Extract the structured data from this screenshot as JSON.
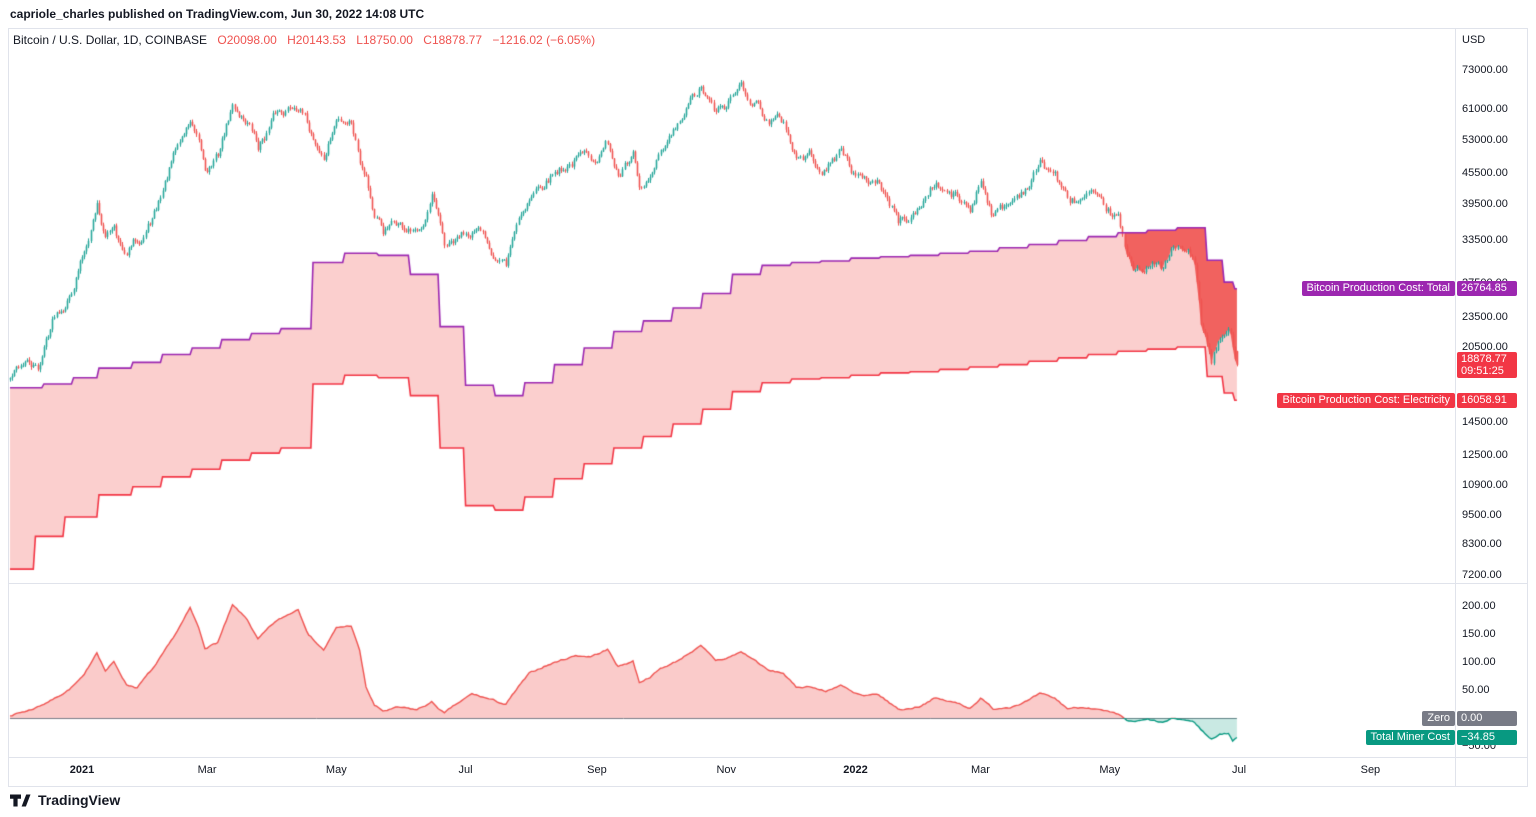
{
  "attribution": "capriole_charles published on TradingView.com, Jun 30, 2022 14:08 UTC",
  "legend": {
    "symbol": "Bitcoin / U.S. Dollar, 1D, COINBASE",
    "open": "O20098.00",
    "high": "H20143.53",
    "low": "L18750.00",
    "close": "C18878.77",
    "change": "−1216.02 (−6.05%)"
  },
  "price_scale": {
    "currency": "USD",
    "ticks": [
      {
        "label": "73000.00",
        "value": 73000
      },
      {
        "label": "61000.00",
        "value": 61000
      },
      {
        "label": "53000.00",
        "value": 53000
      },
      {
        "label": "45500.00",
        "value": 45500
      },
      {
        "label": "39500.00",
        "value": 39500
      },
      {
        "label": "33500.00",
        "value": 33500
      },
      {
        "label": "27500.00",
        "value": 27500
      },
      {
        "label": "23500.00",
        "value": 23500
      },
      {
        "label": "20500.00",
        "value": 20500
      },
      {
        "label": "14500.00",
        "value": 14500
      },
      {
        "label": "12500.00",
        "value": 12500
      },
      {
        "label": "10900.00",
        "value": 10900
      },
      {
        "label": "9500.00",
        "value": 9500
      },
      {
        "label": "8300.00",
        "value": 8300
      },
      {
        "label": "7200.00",
        "value": 7200
      }
    ]
  },
  "indicator_scale": {
    "ticks": [
      {
        "label": "200.00",
        "value": 200
      },
      {
        "label": "150.00",
        "value": 150
      },
      {
        "label": "100.00",
        "value": 100
      },
      {
        "label": "50.00",
        "value": 50
      },
      {
        "label": "−50.00",
        "value": -50
      }
    ]
  },
  "time_scale": {
    "ticks": [
      {
        "label": "2021",
        "date": "2021-01-01",
        "major": true
      },
      {
        "label": "Mar",
        "date": "2021-03-01",
        "major": false
      },
      {
        "label": "May",
        "date": "2021-05-01",
        "major": false
      },
      {
        "label": "Jul",
        "date": "2021-07-01",
        "major": false
      },
      {
        "label": "Sep",
        "date": "2021-09-01",
        "major": false
      },
      {
        "label": "Nov",
        "date": "2021-11-01",
        "major": false
      },
      {
        "label": "2022",
        "date": "2022-01-01",
        "major": true
      },
      {
        "label": "Mar",
        "date": "2022-03-01",
        "major": false
      },
      {
        "label": "May",
        "date": "2022-05-01",
        "major": false
      },
      {
        "label": "Jul",
        "date": "2022-07-01",
        "major": false
      },
      {
        "label": "Sep",
        "date": "2022-09-01",
        "major": false
      }
    ]
  },
  "tags": {
    "production_total": {
      "label": "Bitcoin Production Cost: Total",
      "value": "26764.85",
      "price": 26764.85,
      "color": "#9c27b0"
    },
    "production_electricity": {
      "label": "Bitcoin Production Cost: Electricity",
      "value": "16058.91",
      "price": 16058.91,
      "color": "#f23645"
    },
    "last_price": {
      "value": "18878.77",
      "countdown": "09:51:25",
      "price": 18878.77,
      "color": "#f23645"
    },
    "zero": {
      "label": "Zero",
      "value": "0.00",
      "v": 0,
      "color": "#787b86"
    },
    "miner_cost": {
      "label": "Total Miner Cost",
      "value": "−34.85",
      "v": -34.85,
      "color": "#089981"
    }
  },
  "footer": {
    "brand": "TradingView"
  },
  "chart_data": {
    "type": "candlestick",
    "title": "Bitcoin / U.S. Dollar",
    "interval": "1D",
    "exchange": "COINBASE",
    "price_axis": {
      "scale": "log",
      "visible_range": [
        7200,
        73000
      ],
      "currency": "USD"
    },
    "indicator_axis": {
      "scale": "linear",
      "visible_range": [
        -50,
        215
      ]
    },
    "x_range": {
      "start": "2020-11-28",
      "end": "2022-10-08",
      "last_bar": "2022-06-30"
    },
    "ohlc_last": {
      "open": 20098.0,
      "high": 20143.53,
      "low": 18750.0,
      "close": 18878.77,
      "change": -1216.02,
      "change_pct": -6.05
    },
    "close_keyframes": [
      [
        "2020-11-28",
        17700
      ],
      [
        "2020-12-05",
        19150
      ],
      [
        "2020-12-11",
        18250
      ],
      [
        "2020-12-19",
        23900
      ],
      [
        "2020-12-26",
        26500
      ],
      [
        "2021-01-02",
        32200
      ],
      [
        "2021-01-08",
        40600
      ],
      [
        "2021-01-12",
        34000
      ],
      [
        "2021-01-16",
        36800
      ],
      [
        "2021-01-21",
        31000
      ],
      [
        "2021-01-29",
        34300
      ],
      [
        "2021-02-05",
        38300
      ],
      [
        "2021-02-12",
        47200
      ],
      [
        "2021-02-21",
        57500
      ],
      [
        "2021-02-28",
        45100
      ],
      [
        "2021-03-06",
        48900
      ],
      [
        "2021-03-13",
        61200
      ],
      [
        "2021-03-20",
        58100
      ],
      [
        "2021-03-25",
        51300
      ],
      [
        "2021-04-02",
        59000
      ],
      [
        "2021-04-13",
        63500
      ],
      [
        "2021-04-18",
        56200
      ],
      [
        "2021-04-25",
        49000
      ],
      [
        "2021-05-01",
        57800
      ],
      [
        "2021-05-08",
        58800
      ],
      [
        "2021-05-12",
        49500
      ],
      [
        "2021-05-15",
        46700
      ],
      [
        "2021-05-19",
        38000
      ],
      [
        "2021-05-23",
        34700
      ],
      [
        "2021-05-30",
        35600
      ],
      [
        "2021-06-08",
        33400
      ],
      [
        "2021-06-15",
        40100
      ],
      [
        "2021-06-21",
        31600
      ],
      [
        "2021-06-26",
        32200
      ],
      [
        "2021-07-04",
        35300
      ],
      [
        "2021-07-10",
        33500
      ],
      [
        "2021-07-20",
        29800
      ],
      [
        "2021-07-26",
        37200
      ],
      [
        "2021-07-31",
        41500
      ],
      [
        "2021-08-07",
        44600
      ],
      [
        "2021-08-14",
        47100
      ],
      [
        "2021-08-22",
        48900
      ],
      [
        "2021-08-29",
        48800
      ],
      [
        "2021-09-06",
        52700
      ],
      [
        "2021-09-11",
        45200
      ],
      [
        "2021-09-18",
        48300
      ],
      [
        "2021-09-21",
        40700
      ],
      [
        "2021-09-26",
        43200
      ],
      [
        "2021-10-01",
        48200
      ],
      [
        "2021-10-09",
        54700
      ],
      [
        "2021-10-15",
        61600
      ],
      [
        "2021-10-20",
        66000
      ],
      [
        "2021-10-27",
        58500
      ],
      [
        "2021-11-01",
        61000
      ],
      [
        "2021-11-08",
        67500
      ],
      [
        "2021-11-15",
        63600
      ],
      [
        "2021-11-21",
        58700
      ],
      [
        "2021-11-28",
        57300
      ],
      [
        "2021-12-04",
        49200
      ],
      [
        "2021-12-11",
        49400
      ],
      [
        "2021-12-18",
        46700
      ],
      [
        "2021-12-25",
        50800
      ],
      [
        "2021-12-31",
        46200
      ],
      [
        "2022-01-05",
        43400
      ],
      [
        "2022-01-12",
        43900
      ],
      [
        "2022-01-21",
        36400
      ],
      [
        "2022-01-24",
        36700
      ],
      [
        "2022-01-31",
        38500
      ],
      [
        "2022-02-07",
        44000
      ],
      [
        "2022-02-12",
        42200
      ],
      [
        "2022-02-19",
        40100
      ],
      [
        "2022-02-24",
        38300
      ],
      [
        "2022-03-01",
        44400
      ],
      [
        "2022-03-07",
        38000
      ],
      [
        "2022-03-15",
        39600
      ],
      [
        "2022-03-24",
        44000
      ],
      [
        "2022-03-29",
        47400
      ],
      [
        "2022-04-05",
        45500
      ],
      [
        "2022-04-11",
        39500
      ],
      [
        "2022-04-21",
        40500
      ],
      [
        "2022-04-30",
        37700
      ],
      [
        "2022-05-05",
        36500
      ],
      [
        "2022-05-09",
        30100
      ],
      [
        "2022-05-12",
        29000
      ],
      [
        "2022-05-19",
        30300
      ],
      [
        "2022-05-26",
        29200
      ],
      [
        "2022-05-31",
        31800
      ],
      [
        "2022-06-06",
        31400
      ],
      [
        "2022-06-10",
        30100
      ],
      [
        "2022-06-13",
        22500
      ],
      [
        "2022-06-18",
        19000
      ],
      [
        "2022-06-21",
        20700
      ],
      [
        "2022-06-26",
        21500
      ],
      [
        "2022-06-30",
        18878.77
      ]
    ],
    "production_cost_total_steps": [
      [
        "2020-11-28",
        17000
      ],
      [
        "2020-12-14",
        17300
      ],
      [
        "2020-12-28",
        17800
      ],
      [
        "2021-01-09",
        18600
      ],
      [
        "2021-01-25",
        19100
      ],
      [
        "2021-02-08",
        19800
      ],
      [
        "2021-02-22",
        20400
      ],
      [
        "2021-03-08",
        21200
      ],
      [
        "2021-03-22",
        21800
      ],
      [
        "2021-04-05",
        22300
      ],
      [
        "2021-04-20",
        30200
      ],
      [
        "2021-05-05",
        31500
      ],
      [
        "2021-05-21",
        31200
      ],
      [
        "2021-06-05",
        28600
      ],
      [
        "2021-06-19",
        22500
      ],
      [
        "2021-07-01",
        17200
      ],
      [
        "2021-07-15",
        16400
      ],
      [
        "2021-07-29",
        17400
      ],
      [
        "2021-08-12",
        18900
      ],
      [
        "2021-08-26",
        20400
      ],
      [
        "2021-09-09",
        22000
      ],
      [
        "2021-09-23",
        23100
      ],
      [
        "2021-10-07",
        24500
      ],
      [
        "2021-10-21",
        26200
      ],
      [
        "2021-11-04",
        28600
      ],
      [
        "2021-11-18",
        29800
      ],
      [
        "2021-12-02",
        30200
      ],
      [
        "2021-12-16",
        30400
      ],
      [
        "2021-12-30",
        30800
      ],
      [
        "2022-01-13",
        31000
      ],
      [
        "2022-01-27",
        31200
      ],
      [
        "2022-02-10",
        31500
      ],
      [
        "2022-02-24",
        31800
      ],
      [
        "2022-03-10",
        32300
      ],
      [
        "2022-03-24",
        32800
      ],
      [
        "2022-04-07",
        33400
      ],
      [
        "2022-04-21",
        34000
      ],
      [
        "2022-05-05",
        34600
      ],
      [
        "2022-05-19",
        35000
      ],
      [
        "2022-06-02",
        35400
      ],
      [
        "2022-06-16",
        30500
      ],
      [
        "2022-06-24",
        27600
      ],
      [
        "2022-06-29",
        26764.85
      ]
    ],
    "production_cost_electricity_steps": [
      [
        "2020-11-28",
        7400
      ],
      [
        "2020-12-10",
        8600
      ],
      [
        "2020-12-24",
        9400
      ],
      [
        "2021-01-09",
        10400
      ],
      [
        "2021-01-25",
        10800
      ],
      [
        "2021-02-08",
        11300
      ],
      [
        "2021-02-22",
        11700
      ],
      [
        "2021-03-08",
        12200
      ],
      [
        "2021-03-22",
        12600
      ],
      [
        "2021-04-05",
        12900
      ],
      [
        "2021-04-20",
        17300
      ],
      [
        "2021-05-05",
        18000
      ],
      [
        "2021-05-21",
        17800
      ],
      [
        "2021-06-05",
        16400
      ],
      [
        "2021-06-19",
        12900
      ],
      [
        "2021-07-01",
        9900
      ],
      [
        "2021-07-15",
        9700
      ],
      [
        "2021-07-29",
        10300
      ],
      [
        "2021-08-12",
        11200
      ],
      [
        "2021-08-26",
        12000
      ],
      [
        "2021-09-09",
        12900
      ],
      [
        "2021-09-23",
        13600
      ],
      [
        "2021-10-07",
        14400
      ],
      [
        "2021-10-21",
        15400
      ],
      [
        "2021-11-04",
        16700
      ],
      [
        "2021-11-18",
        17400
      ],
      [
        "2021-12-02",
        17700
      ],
      [
        "2021-12-16",
        17800
      ],
      [
        "2021-12-30",
        18000
      ],
      [
        "2022-01-13",
        18200
      ],
      [
        "2022-01-27",
        18300
      ],
      [
        "2022-02-10",
        18500
      ],
      [
        "2022-02-24",
        18700
      ],
      [
        "2022-03-10",
        18900
      ],
      [
        "2022-03-24",
        19200
      ],
      [
        "2022-04-07",
        19500
      ],
      [
        "2022-04-21",
        19800
      ],
      [
        "2022-05-05",
        20100
      ],
      [
        "2022-05-19",
        20300
      ],
      [
        "2022-06-02",
        20500
      ],
      [
        "2022-06-16",
        17900
      ],
      [
        "2022-06-24",
        16600
      ],
      [
        "2022-06-29",
        16058.91
      ]
    ],
    "total_miner_cost_pct": [
      [
        "2020-11-28",
        5
      ],
      [
        "2020-12-08",
        15
      ],
      [
        "2020-12-19",
        35
      ],
      [
        "2020-12-26",
        52
      ],
      [
        "2021-01-02",
        75
      ],
      [
        "2021-01-08",
        118
      ],
      [
        "2021-01-12",
        85
      ],
      [
        "2021-01-16",
        100
      ],
      [
        "2021-01-22",
        60
      ],
      [
        "2021-01-27",
        55
      ],
      [
        "2021-02-05",
        95
      ],
      [
        "2021-02-12",
        135
      ],
      [
        "2021-02-21",
        195
      ],
      [
        "2021-02-25",
        160
      ],
      [
        "2021-02-28",
        125
      ],
      [
        "2021-03-06",
        135
      ],
      [
        "2021-03-13",
        200
      ],
      [
        "2021-03-20",
        175
      ],
      [
        "2021-03-25",
        140
      ],
      [
        "2021-04-02",
        170
      ],
      [
        "2021-04-13",
        195
      ],
      [
        "2021-04-18",
        150
      ],
      [
        "2021-04-25",
        122
      ],
      [
        "2021-05-01",
        160
      ],
      [
        "2021-05-08",
        165
      ],
      [
        "2021-05-12",
        120
      ],
      [
        "2021-05-15",
        55
      ],
      [
        "2021-05-19",
        22
      ],
      [
        "2021-05-23",
        12
      ],
      [
        "2021-05-30",
        18
      ],
      [
        "2021-06-08",
        14
      ],
      [
        "2021-06-15",
        28
      ],
      [
        "2021-06-21",
        8
      ],
      [
        "2021-06-26",
        22
      ],
      [
        "2021-07-04",
        42
      ],
      [
        "2021-07-10",
        36
      ],
      [
        "2021-07-20",
        24
      ],
      [
        "2021-07-26",
        55
      ],
      [
        "2021-07-31",
        78
      ],
      [
        "2021-08-07",
        92
      ],
      [
        "2021-08-14",
        102
      ],
      [
        "2021-08-22",
        112
      ],
      [
        "2021-08-29",
        110
      ],
      [
        "2021-09-06",
        122
      ],
      [
        "2021-09-11",
        92
      ],
      [
        "2021-09-18",
        102
      ],
      [
        "2021-09-21",
        64
      ],
      [
        "2021-09-26",
        74
      ],
      [
        "2021-10-01",
        88
      ],
      [
        "2021-10-09",
        102
      ],
      [
        "2021-10-15",
        118
      ],
      [
        "2021-10-20",
        128
      ],
      [
        "2021-10-27",
        102
      ],
      [
        "2021-11-01",
        106
      ],
      [
        "2021-11-08",
        118
      ],
      [
        "2021-11-15",
        102
      ],
      [
        "2021-11-21",
        84
      ],
      [
        "2021-11-28",
        80
      ],
      [
        "2021-12-04",
        54
      ],
      [
        "2021-12-11",
        57
      ],
      [
        "2021-12-18",
        47
      ],
      [
        "2021-12-25",
        60
      ],
      [
        "2021-12-31",
        44
      ],
      [
        "2022-01-05",
        38
      ],
      [
        "2022-01-12",
        40
      ],
      [
        "2022-01-21",
        16
      ],
      [
        "2022-01-24",
        15
      ],
      [
        "2022-01-31",
        21
      ],
      [
        "2022-02-07",
        36
      ],
      [
        "2022-02-12",
        31
      ],
      [
        "2022-02-19",
        25
      ],
      [
        "2022-02-24",
        18
      ],
      [
        "2022-03-01",
        36
      ],
      [
        "2022-03-07",
        16
      ],
      [
        "2022-03-15",
        21
      ],
      [
        "2022-03-24",
        32
      ],
      [
        "2022-03-29",
        42
      ],
      [
        "2022-04-05",
        34
      ],
      [
        "2022-04-11",
        17
      ],
      [
        "2022-04-21",
        20
      ],
      [
        "2022-04-30",
        10
      ],
      [
        "2022-05-05",
        4
      ],
      [
        "2022-05-09",
        -5
      ],
      [
        "2022-05-12",
        -8
      ],
      [
        "2022-05-19",
        -4
      ],
      [
        "2022-05-26",
        -9
      ],
      [
        "2022-05-31",
        -2
      ],
      [
        "2022-06-06",
        -4
      ],
      [
        "2022-06-10",
        -8
      ],
      [
        "2022-06-13",
        -20
      ],
      [
        "2022-06-16",
        -32
      ],
      [
        "2022-06-18",
        -38
      ],
      [
        "2022-06-22",
        -28
      ],
      [
        "2022-06-26",
        -27
      ],
      [
        "2022-06-28",
        -40
      ],
      [
        "2022-06-30",
        -34.85
      ]
    ],
    "colors": {
      "up": "#26a69a",
      "down": "#ef5350",
      "total_line": "#9c27b0",
      "electricity_line": "#f23645",
      "band_fill": "rgba(239,83,80,0.28)",
      "loss_fill": "rgba(239,83,80,0.88)",
      "osc_line_pos": "#ef5350",
      "osc_line_neg": "#089981",
      "osc_fill_pos": "rgba(239,83,80,0.30)",
      "osc_fill_neg": "rgba(8,153,129,0.22)",
      "zero_line": "#787b86"
    }
  }
}
